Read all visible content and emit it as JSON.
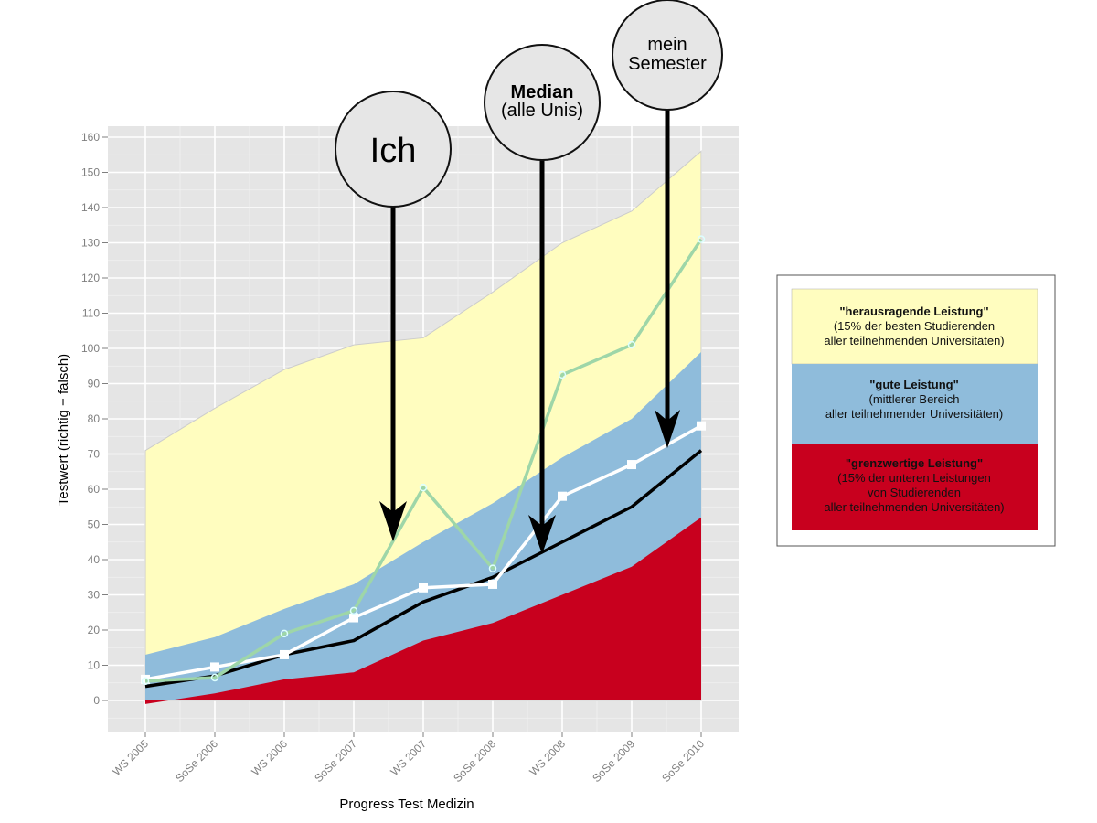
{
  "chart_data": {
    "type": "area",
    "xlabel": "Progress Test Medizin",
    "ylabel": "Testwert (richtig − falsch)",
    "ylim": [
      -8,
      163
    ],
    "yticks": [
      0,
      10,
      20,
      30,
      40,
      50,
      60,
      70,
      80,
      90,
      100,
      110,
      120,
      130,
      140,
      150,
      160
    ],
    "categories": [
      "WS 2005",
      "SoSe 2006",
      "WS 2006",
      "SoSe 2007",
      "WS 2007",
      "SoSe 2008",
      "WS 2008",
      "SoSe 2009",
      "SoSe 2010"
    ],
    "bands": [
      {
        "name": "herausragende Leistung",
        "color": "#fffdbf",
        "upper": [
          71,
          83,
          94,
          101,
          103,
          116,
          130,
          139,
          156
        ]
      },
      {
        "name": "gute Leistung",
        "color": "#8fbcdb",
        "upper": [
          13,
          18,
          26,
          33,
          45,
          56,
          69,
          80,
          99
        ]
      },
      {
        "name": "grenzwertige Leistung",
        "color": "#c8001e",
        "upper": [
          -1,
          2,
          6,
          8,
          17,
          22,
          30,
          38,
          52
        ]
      }
    ],
    "series": [
      {
        "name": "Median (alle Unis)",
        "color": "#000000",
        "values": [
          4,
          7,
          13,
          17,
          28,
          35,
          45,
          55,
          71
        ]
      },
      {
        "name": "mein Semester",
        "color": "#ffffff",
        "values": [
          6,
          9.5,
          13,
          23.5,
          32,
          33,
          58,
          67,
          78
        ]
      },
      {
        "name": "Ich",
        "color": "#9ed6a8",
        "values": [
          5.5,
          6.5,
          19,
          25.5,
          60.5,
          37.5,
          92.5,
          101,
          131
        ]
      }
    ],
    "grid": true,
    "legend_placement": "right",
    "annotations": [
      {
        "label": "Ich",
        "target_category": "WS 2007"
      },
      {
        "label_bold": "Median",
        "label": "(alle Unis)",
        "target_category": "WS 2008"
      },
      {
        "label": "mein",
        "label2": "Semester",
        "target_category": "SoSe 2010"
      }
    ]
  },
  "legend": [
    {
      "title": "\"herausragende Leistung\"",
      "lines": [
        "(15% der besten Studierenden",
        "aller teilnehmenden Universitäten)"
      ],
      "color": "#fffdbf"
    },
    {
      "title": "\"gute Leistung\"",
      "lines": [
        "(mittlerer Bereich",
        "aller teilnehmender Universitäten)"
      ],
      "color": "#8fbcdb"
    },
    {
      "title": "\"grenzwertige Leistung\"",
      "lines": [
        "(15% der unteren Leistungen",
        "von Studierenden",
        "aller teilnehmenden Universitäten)"
      ],
      "color": "#c8001e"
    }
  ]
}
